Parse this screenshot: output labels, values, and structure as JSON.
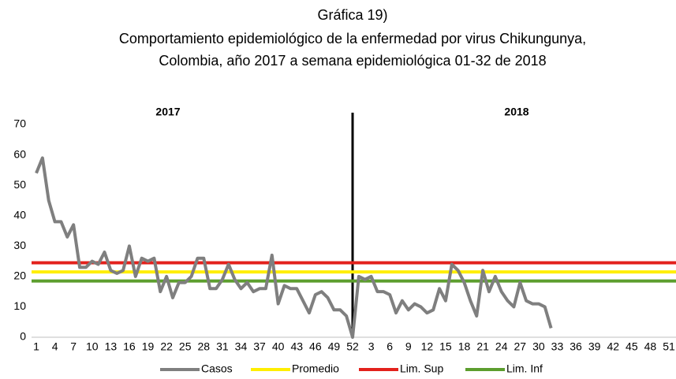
{
  "chart_data": {
    "type": "line",
    "title": "Gráfica 19)",
    "subtitle": [
      "Comportamiento epidemiológico de la enfermedad por virus Chikungunya,",
      "Colombia, año 2017 a semana epidemiológica 01-32 de 2018"
    ],
    "annotations": [
      "2017",
      "2018"
    ],
    "categories": [
      "1",
      null,
      null,
      "4",
      null,
      null,
      "7",
      null,
      null,
      "10",
      null,
      null,
      "13",
      null,
      null,
      "16",
      null,
      null,
      "19",
      null,
      null,
      "22",
      null,
      null,
      "25",
      null,
      null,
      "28",
      null,
      null,
      "31",
      null,
      null,
      "34",
      null,
      null,
      "37",
      null,
      null,
      "40",
      null,
      null,
      "43",
      null,
      null,
      "46",
      null,
      null,
      "49",
      null,
      null,
      "52",
      null,
      null,
      "3",
      null,
      null,
      "6",
      null,
      null,
      "9",
      null,
      null,
      "12",
      null,
      null,
      "15",
      null,
      null,
      "18",
      null,
      null,
      "21",
      null,
      null,
      "24",
      null,
      null,
      "27",
      null,
      null,
      "30",
      null,
      null,
      "33",
      null,
      null,
      "36",
      null,
      null,
      "39",
      null,
      null,
      "42",
      null,
      null,
      "45",
      null,
      null,
      "48",
      null,
      null,
      "51",
      null
    ],
    "series": [
      {
        "name": "Casos",
        "color": "#7f7f7f",
        "values": [
          54,
          59,
          45,
          38,
          38,
          33,
          37,
          23,
          23,
          25,
          24,
          28,
          22,
          21,
          22,
          30,
          20,
          26,
          25,
          26,
          15,
          20,
          13,
          18,
          18,
          20,
          26,
          26,
          16,
          16,
          19,
          24,
          19,
          16,
          18,
          15,
          16,
          16,
          27,
          11,
          17,
          16,
          16,
          12,
          8,
          14,
          15,
          13,
          9,
          9,
          7,
          0,
          20,
          19,
          20,
          15,
          15,
          14,
          8,
          12,
          9,
          11,
          10,
          8,
          9,
          16,
          12,
          24,
          22,
          18,
          12,
          7,
          22,
          15,
          20,
          15,
          12,
          10,
          18,
          12,
          11,
          11,
          10,
          3,
          null,
          null,
          null,
          null,
          null,
          null,
          null,
          null,
          null,
          null,
          null,
          null,
          null,
          null,
          null,
          null,
          null,
          null,
          null,
          null
        ]
      }
    ],
    "reference_lines": [
      {
        "name": "Promedio",
        "color": "#ffee00",
        "value": 21.5
      },
      {
        "name": "Lim. Sup",
        "color": "#e3211c",
        "value": 24.5
      },
      {
        "name": "Lim. Inf",
        "color": "#5c9e2e",
        "value": 18.5
      }
    ],
    "ylim": [
      0,
      70
    ],
    "yticks": [
      0,
      10,
      20,
      30,
      40,
      50,
      60,
      70
    ]
  }
}
